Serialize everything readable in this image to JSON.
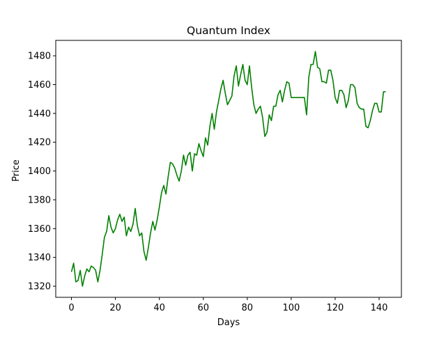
{
  "chart_data": {
    "type": "line",
    "title": "Quantum Index",
    "xlabel": "Days",
    "ylabel": "Price",
    "xlim": [
      -7.15,
      150.15
    ],
    "ylim": [
      1312.3,
      1490.7
    ],
    "xticks": [
      0,
      20,
      40,
      60,
      80,
      100,
      120,
      140
    ],
    "yticks": [
      1320,
      1340,
      1360,
      1380,
      1400,
      1420,
      1440,
      1460,
      1480
    ],
    "grid": false,
    "legend": "none",
    "line_color": "#008000",
    "series": [
      {
        "x": [
          0,
          1,
          2,
          3,
          4,
          5,
          6,
          7,
          8,
          9,
          10,
          11,
          12,
          13,
          14,
          15,
          16,
          17,
          18,
          19,
          20,
          21,
          22,
          23,
          24,
          25,
          26,
          27,
          28,
          29,
          30,
          31,
          32,
          33,
          34,
          35,
          36,
          37,
          38,
          39,
          40,
          41,
          42,
          43,
          44,
          45,
          46,
          47,
          48,
          49,
          50,
          51,
          52,
          53,
          54,
          55,
          56,
          57,
          58,
          59,
          60,
          61,
          62,
          63,
          64,
          65,
          66,
          67,
          68,
          69,
          70,
          71,
          72,
          73,
          74,
          75,
          76,
          77,
          78,
          79,
          80,
          81,
          82,
          83,
          84,
          85,
          86,
          87,
          88,
          89,
          90,
          91,
          92,
          93,
          94,
          95,
          96,
          97,
          98,
          99,
          100,
          101,
          102,
          103,
          104,
          105,
          106,
          107,
          108,
          109,
          110,
          111,
          112,
          113,
          114,
          115,
          116,
          117,
          118,
          119,
          120,
          121,
          122,
          123,
          124,
          125,
          126,
          127,
          128,
          129,
          130,
          131,
          132,
          133,
          134,
          135,
          136,
          137,
          138,
          139,
          140,
          141,
          142,
          143
        ],
        "values": [
          1330,
          1336,
          1323,
          1324,
          1331,
          1320,
          1327,
          1332,
          1330,
          1334,
          1333,
          1331,
          1323,
          1331,
          1342,
          1354,
          1358,
          1369,
          1361,
          1357,
          1360,
          1366,
          1370,
          1365,
          1368,
          1355,
          1361,
          1358,
          1363,
          1374,
          1362,
          1355,
          1357,
          1344,
          1338,
          1347,
          1357,
          1365,
          1359,
          1366,
          1375,
          1385,
          1390,
          1384,
          1396,
          1406,
          1405,
          1402,
          1397,
          1393,
          1400,
          1411,
          1404,
          1411,
          1413,
          1400,
          1412,
          1411,
          1419,
          1414,
          1410,
          1423,
          1418,
          1431,
          1440,
          1429,
          1441,
          1449,
          1457,
          1463,
          1454,
          1446,
          1449,
          1452,
          1466,
          1473,
          1459,
          1467,
          1474,
          1463,
          1460,
          1473,
          1458,
          1446,
          1440,
          1443,
          1445,
          1437,
          1424,
          1427,
          1439,
          1435,
          1445,
          1445,
          1453,
          1456,
          1448,
          1456,
          1462,
          1461,
          1451,
          1451,
          1451,
          1451,
          1451,
          1451,
          1451,
          1439,
          1465,
          1474,
          1474,
          1483,
          1472,
          1471,
          1462,
          1462,
          1461,
          1470,
          1470,
          1463,
          1451,
          1447,
          1456,
          1456,
          1453,
          1444,
          1449,
          1460,
          1460,
          1458,
          1447,
          1444,
          1443,
          1443,
          1431,
          1430,
          1435,
          1442,
          1447,
          1447,
          1441,
          1441,
          1455,
          1455
        ]
      }
    ]
  }
}
